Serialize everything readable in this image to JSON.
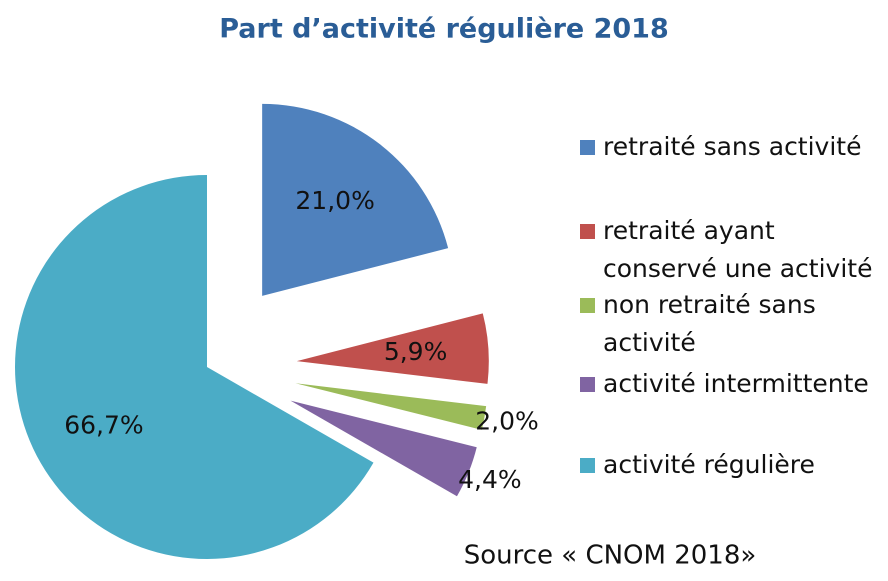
{
  "chart_data": {
    "type": "pie",
    "title": "Part d’activité régulière 2018",
    "categories": [
      "retraité sans activité",
      "retraité ayant conservé une activité",
      "non retraité sans activité",
      "activité intermittente",
      "activité régulière"
    ],
    "values": [
      21.0,
      5.9,
      2.0,
      4.4,
      66.7
    ],
    "value_labels": [
      "21,0%",
      "5,9%",
      "2,0%",
      "4,4%",
      "66,7%"
    ],
    "colors": [
      "#4f81bd",
      "#c0504d",
      "#9bbb59",
      "#8064a2",
      "#4bacc6"
    ],
    "source": "Source « CNOM 2018»"
  }
}
